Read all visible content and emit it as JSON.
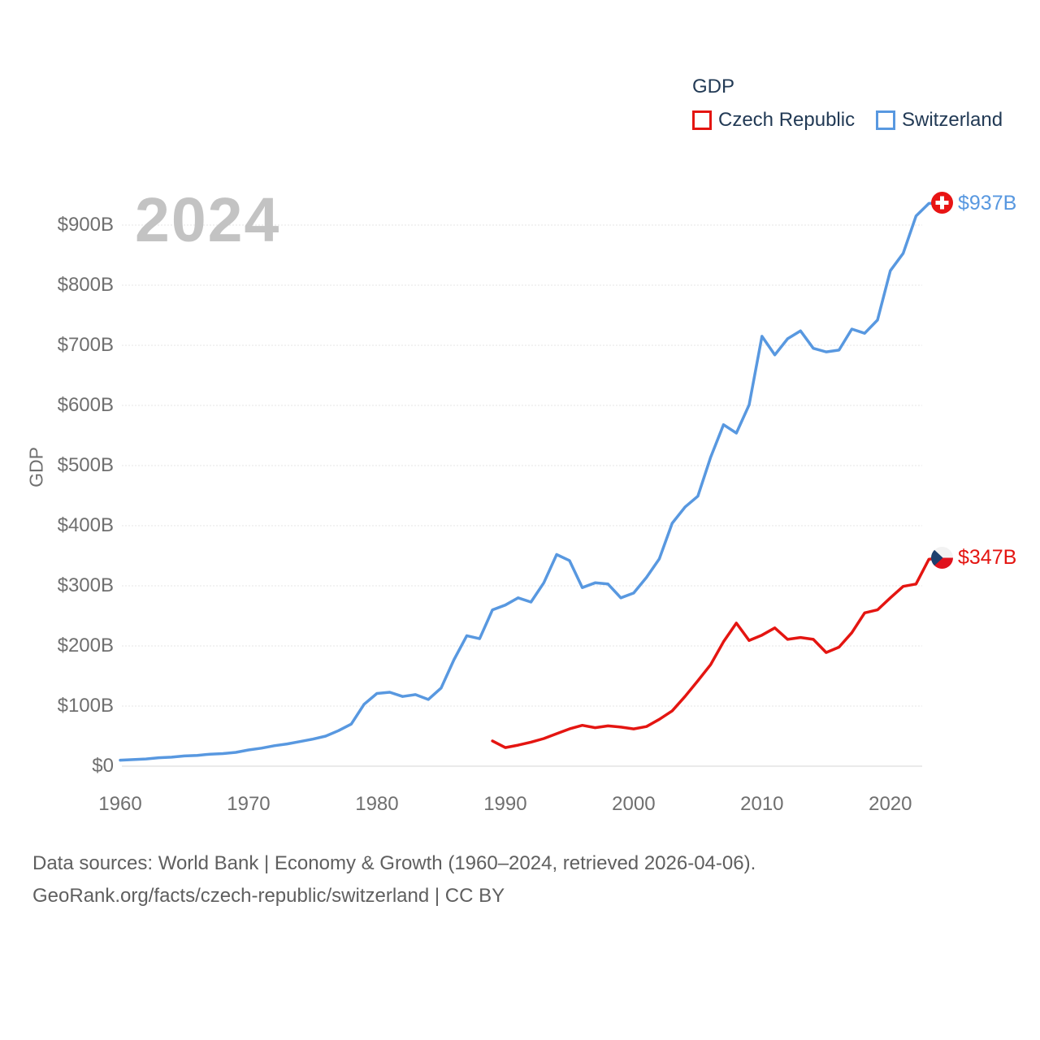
{
  "legend": {
    "title": "GDP",
    "items": [
      {
        "label": "Czech Republic",
        "color": "#e41511"
      },
      {
        "label": "Switzerland",
        "color": "#5898e0"
      }
    ]
  },
  "watermark_year": "2024",
  "y_axis_title": "GDP",
  "footer": {
    "line1": "Data sources: World Bank | Economy & Growth (1960–2024, retrieved 2026-04-06).",
    "line2": "GeoRank.org/facts/czech-republic/switzerland | CC BY"
  },
  "chart_data": {
    "type": "line",
    "title": "GDP",
    "watermark": "2024",
    "xlabel": "",
    "ylabel": "GDP",
    "xlim": [
      1960,
      2024
    ],
    "ylim": [
      0,
      950
    ],
    "grid": "horizontal-dashed",
    "legend_position": "top-right",
    "x_ticks": [
      {
        "value": 1960,
        "label": "1960"
      },
      {
        "value": 1970,
        "label": "1970"
      },
      {
        "value": 1980,
        "label": "1980"
      },
      {
        "value": 1990,
        "label": "1990"
      },
      {
        "value": 2000,
        "label": "2000"
      },
      {
        "value": 2010,
        "label": "2010"
      },
      {
        "value": 2020,
        "label": "2020"
      }
    ],
    "y_ticks": [
      {
        "value": 0,
        "label": "$0"
      },
      {
        "value": 100,
        "label": "$100B"
      },
      {
        "value": 200,
        "label": "$200B"
      },
      {
        "value": 300,
        "label": "$300B"
      },
      {
        "value": 400,
        "label": "$400B"
      },
      {
        "value": 500,
        "label": "$500B"
      },
      {
        "value": 600,
        "label": "$600B"
      },
      {
        "value": 700,
        "label": "$700B"
      },
      {
        "value": 800,
        "label": "$800B"
      },
      {
        "value": 900,
        "label": "$900B"
      }
    ],
    "unit": "billion USD",
    "series": [
      {
        "name": "Switzerland",
        "color": "#5898e0",
        "flag": "switzerland",
        "end_label": "$937B",
        "start_year": 1960,
        "values": [
          10,
          11,
          12,
          14,
          15,
          17,
          18,
          20,
          21,
          23,
          27,
          30,
          34,
          37,
          41,
          45,
          50,
          59,
          70,
          103,
          121,
          123,
          116,
          119,
          111,
          130,
          177,
          217,
          212,
          260,
          268,
          280,
          273,
          305,
          352,
          342,
          297,
          305,
          303,
          280,
          288,
          314,
          345,
          404,
          431,
          449,
          514,
          568,
          554,
          601,
          715,
          684,
          711,
          724,
          695,
          689,
          692,
          727,
          720,
          742,
          824,
          853,
          915,
          936,
          937
        ]
      },
      {
        "name": "Czech Republic",
        "color": "#e41511",
        "flag": "czech-republic",
        "end_label": "$347B",
        "start_year": 1989,
        "values": [
          42,
          31,
          35,
          40,
          46,
          54,
          62,
          68,
          64,
          67,
          65,
          62,
          66,
          78,
          92,
          116,
          142,
          169,
          207,
          238,
          209,
          218,
          230,
          211,
          214,
          211,
          189,
          198,
          222,
          255,
          260,
          280,
          299,
          303,
          344,
          347
        ]
      }
    ]
  }
}
